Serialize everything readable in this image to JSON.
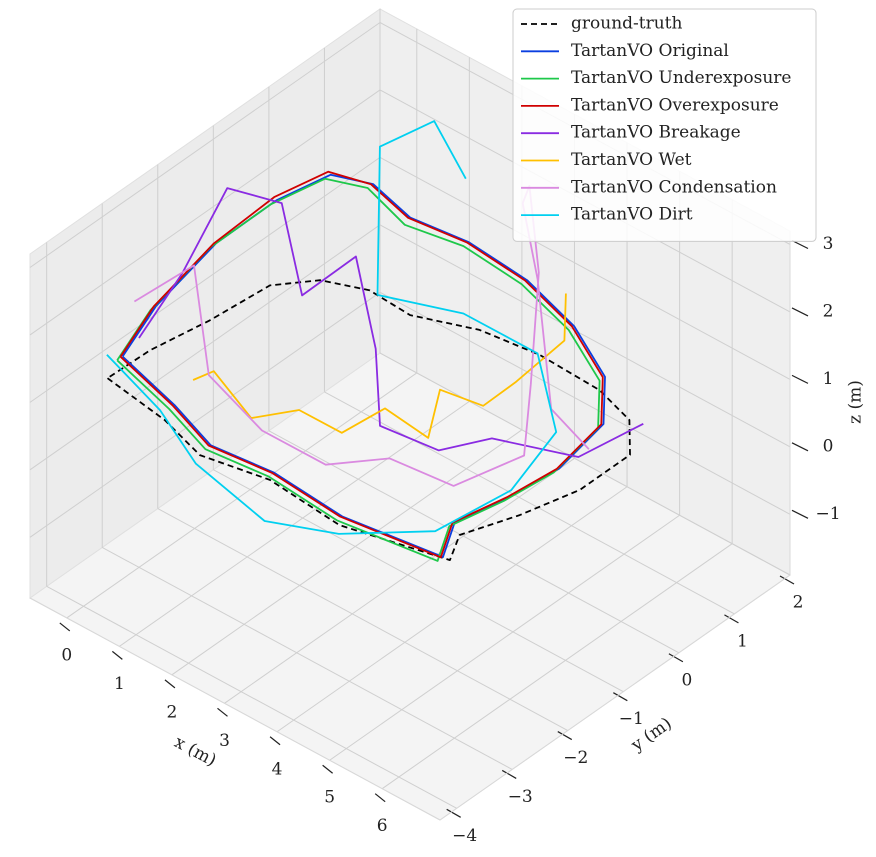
{
  "chart_data": {
    "type": "line3d",
    "xlabel": "x (m)",
    "ylabel": "y (m)",
    "zlabel": "z (m)",
    "xlim": [
      -0.7,
      7.1
    ],
    "ylim": [
      -4.3,
      2.0
    ],
    "zlim": [
      -1.9,
      3.2
    ],
    "xticks": [
      0,
      1,
      2,
      3,
      4,
      5,
      6
    ],
    "yticks": [
      {
        "value": -4,
        "label": "−4"
      },
      {
        "value": -3,
        "label": "−3"
      },
      {
        "value": -2,
        "label": "−2"
      },
      {
        "value": -1,
        "label": "−1"
      },
      0,
      1,
      2
    ],
    "zticks": [
      {
        "value": -1,
        "label": "−1"
      },
      0,
      1,
      2,
      3
    ],
    "grid": true,
    "legend": "upper right",
    "series": [
      {
        "name": "ground-truth",
        "color": "#000000",
        "linestyle": "dashed",
        "x": [
          -0.24,
          1.02,
          1.93,
          3.06,
          4.5,
          6.22,
          5.94,
          6.28,
          6.54,
          6.54,
          6.0,
          5.22,
          4.04,
          3.01,
          2.04,
          1.22,
          0.54,
          0.08,
          -0.03,
          -0.21,
          -0.24
        ],
        "y": [
          -3.34,
          -3.5,
          -3.73,
          -3.54,
          -3.65,
          -3.29,
          -2.85,
          -2.09,
          -1.25,
          -0.35,
          0.15,
          0.35,
          0.39,
          0.28,
          -0.05,
          -0.01,
          -0.25,
          -0.72,
          -1.7,
          -2.6,
          -3.34
        ],
        "z": [
          1.0,
          1.0,
          1.0,
          1.0,
          1.0,
          1.0,
          1.0,
          1.0,
          1.0,
          1.0,
          1.0,
          1.0,
          1.0,
          1.0,
          1.0,
          1.0,
          1.0,
          1.0,
          1.0,
          1.0,
          1.0
        ]
      },
      {
        "name": "TartanVO Original",
        "color": "#0a3fe0",
        "linestyle": "solid",
        "x": [
          -0.1,
          1.1,
          2.0,
          3.1,
          4.5,
          6.1,
          5.9,
          6.2,
          6.3,
          6.3,
          5.8,
          5.0,
          4.0,
          3.0,
          2.2,
          1.6,
          1.0,
          0.5,
          0.2,
          -0.1,
          -0.1
        ],
        "y": [
          -3.2,
          -3.4,
          -3.6,
          -3.5,
          -3.6,
          -3.3,
          -2.9,
          -2.2,
          -1.4,
          -0.6,
          -0.1,
          0.1,
          0.2,
          0.1,
          -0.2,
          -0.3,
          -0.5,
          -1.0,
          -1.8,
          -2.6,
          -3.2
        ],
        "z": [
          1.3,
          1.2,
          1.1,
          1.1,
          1.1,
          1.0,
          1.2,
          1.3,
          1.3,
          1.5,
          1.7,
          2.0,
          2.2,
          2.4,
          2.6,
          2.9,
          2.9,
          2.6,
          2.3,
          1.7,
          1.3
        ]
      },
      {
        "name": "TartanVO Underexposure",
        "color": "#1ec84a",
        "linestyle": "solid",
        "x": [
          -0.15,
          1.05,
          1.95,
          3.05,
          4.45,
          6.05,
          5.85,
          6.15,
          6.25,
          6.25,
          5.75,
          4.95,
          3.95,
          2.95,
          2.15,
          1.55,
          0.95,
          0.45,
          0.15,
          -0.15,
          -0.15
        ],
        "y": [
          -3.25,
          -3.45,
          -3.65,
          -3.55,
          -3.65,
          -3.35,
          -2.95,
          -2.25,
          -1.45,
          -0.65,
          -0.15,
          0.05,
          0.15,
          0.05,
          -0.25,
          -0.35,
          -0.55,
          -1.05,
          -1.85,
          -2.65,
          -3.25
        ],
        "z": [
          1.25,
          1.15,
          1.05,
          1.05,
          1.05,
          0.95,
          1.15,
          1.25,
          1.25,
          1.45,
          1.65,
          1.95,
          2.15,
          2.35,
          2.5,
          2.85,
          2.85,
          2.55,
          2.25,
          1.65,
          1.25
        ]
      },
      {
        "name": "TartanVO Overexposure",
        "color": "#d00000",
        "linestyle": "solid",
        "x": [
          -0.12,
          1.08,
          1.98,
          3.08,
          4.48,
          6.08,
          5.88,
          6.18,
          6.28,
          6.28,
          5.78,
          4.98,
          3.98,
          2.98,
          2.18,
          1.58,
          0.98,
          0.48,
          0.18,
          -0.12,
          -0.12
        ],
        "y": [
          -3.22,
          -3.42,
          -3.62,
          -3.52,
          -3.62,
          -3.32,
          -2.92,
          -2.22,
          -1.42,
          -0.62,
          -0.12,
          0.08,
          0.18,
          0.08,
          -0.22,
          -0.32,
          -0.52,
          -1.02,
          -1.82,
          -2.62,
          -3.22
        ],
        "z": [
          1.3,
          1.2,
          1.1,
          1.1,
          1.1,
          1.0,
          1.2,
          1.3,
          1.3,
          1.5,
          1.7,
          2.0,
          2.2,
          2.4,
          2.6,
          2.9,
          2.95,
          2.65,
          2.3,
          1.7,
          1.3
        ]
      },
      {
        "name": "TartanVO Breakage",
        "color": "#8a2be2",
        "linestyle": "solid",
        "x": [
          0.0,
          0.4,
          0.2,
          0.6,
          1.2,
          1.8,
          2.6,
          3.0,
          3.8,
          4.6,
          5.4,
          6.0
        ],
        "y": [
          -3.0,
          -2.6,
          -1.6,
          -1.0,
          -1.2,
          -0.8,
          -1.2,
          -1.5,
          -1.2,
          -1.0,
          -0.2,
          0.4
        ],
        "z": [
          1.5,
          2.4,
          3.0,
          2.6,
          1.6,
          2.2,
          1.4,
          0.6,
          0.4,
          0.8,
          0.4,
          0.8
        ]
      },
      {
        "name": "TartanVO Wet",
        "color": "#ffc000",
        "linestyle": "solid",
        "x": [
          0.5,
          1.0,
          1.5,
          2.2,
          2.8,
          3.2,
          3.6,
          3.4,
          3.8,
          4.2,
          4.5,
          4.0
        ],
        "y": [
          -2.5,
          -2.6,
          -2.4,
          -2.2,
          -2.0,
          -1.6,
          -1.2,
          -0.8,
          -0.4,
          -0.2,
          0.4,
          0.9
        ],
        "z": [
          0.8,
          1.2,
          0.6,
          0.9,
          0.7,
          1.0,
          0.5,
          0.9,
          0.6,
          1.0,
          1.4,
          1.6
        ]
      },
      {
        "name": "TartanVO Condensation",
        "color": "#da8ae0",
        "linestyle": "solid",
        "x": [
          -0.3,
          0.2,
          0.8,
          1.6,
          2.6,
          3.5,
          4.4,
          5.0,
          4.6,
          3.8,
          3.2,
          3.6,
          4.2,
          5.2,
          5.6
        ],
        "y": [
          -2.8,
          -2.2,
          -2.5,
          -2.3,
          -2.1,
          -1.8,
          -1.5,
          -0.8,
          -0.3,
          0.6,
          1.0,
          0.5,
          0.2,
          -0.5,
          -0.2
        ],
        "z": [
          1.8,
          2.2,
          1.0,
          0.4,
          0.2,
          0.5,
          0.3,
          0.6,
          1.2,
          2.0,
          2.8,
          3.0,
          2.3,
          1.2,
          0.6
        ]
      },
      {
        "name": "TartanVO Dirt",
        "color": "#00d0f0",
        "linestyle": "solid",
        "x": [
          -0.4,
          0.4,
          1.4,
          2.6,
          3.8,
          5.0,
          5.6,
          5.4,
          4.2,
          3.0,
          2.0,
          1.2,
          1.6,
          2.2
        ],
        "y": [
          -3.2,
          -3.0,
          -3.3,
          -3.2,
          -3.0,
          -2.4,
          -1.6,
          -0.6,
          0.2,
          0.0,
          -0.6,
          0.2,
          0.8,
          0.8
        ],
        "z": [
          1.2,
          0.6,
          0.4,
          0.0,
          0.2,
          0.4,
          0.8,
          1.0,
          1.2,
          1.4,
          1.6,
          3.0,
          3.2,
          2.6
        ]
      }
    ]
  }
}
